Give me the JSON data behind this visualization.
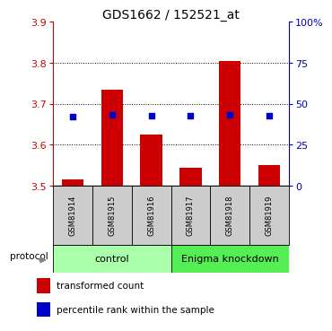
{
  "title": "GDS1662 / 152521_at",
  "samples": [
    "GSM81914",
    "GSM81915",
    "GSM81916",
    "GSM81917",
    "GSM81918",
    "GSM81919"
  ],
  "transformed_counts": [
    3.515,
    3.735,
    3.625,
    3.545,
    3.805,
    3.55
  ],
  "percentile_ranks": [
    42.0,
    43.5,
    43.0,
    42.5,
    43.5,
    42.5
  ],
  "ylim": [
    3.5,
    3.9
  ],
  "yticks_left": [
    3.5,
    3.6,
    3.7,
    3.8,
    3.9
  ],
  "yticks_right": [
    0,
    25,
    50,
    75,
    100
  ],
  "grid_lines": [
    3.6,
    3.7,
    3.8
  ],
  "bar_color": "#cc0000",
  "dot_color": "#0000cc",
  "bar_width": 0.55,
  "group_control_color": "#aaffaa",
  "group_knockdown_color": "#55ee55",
  "sample_box_color": "#cccccc",
  "protocol_label": "protocol",
  "legend_bar_label": "transformed count",
  "legend_dot_label": "percentile rank within the sample",
  "axis_color_left": "#cc0000",
  "axis_color_right": "#0000bb",
  "title_fontsize": 10,
  "tick_fontsize": 8,
  "sample_fontsize": 6,
  "group_fontsize": 8,
  "legend_fontsize": 7.5
}
